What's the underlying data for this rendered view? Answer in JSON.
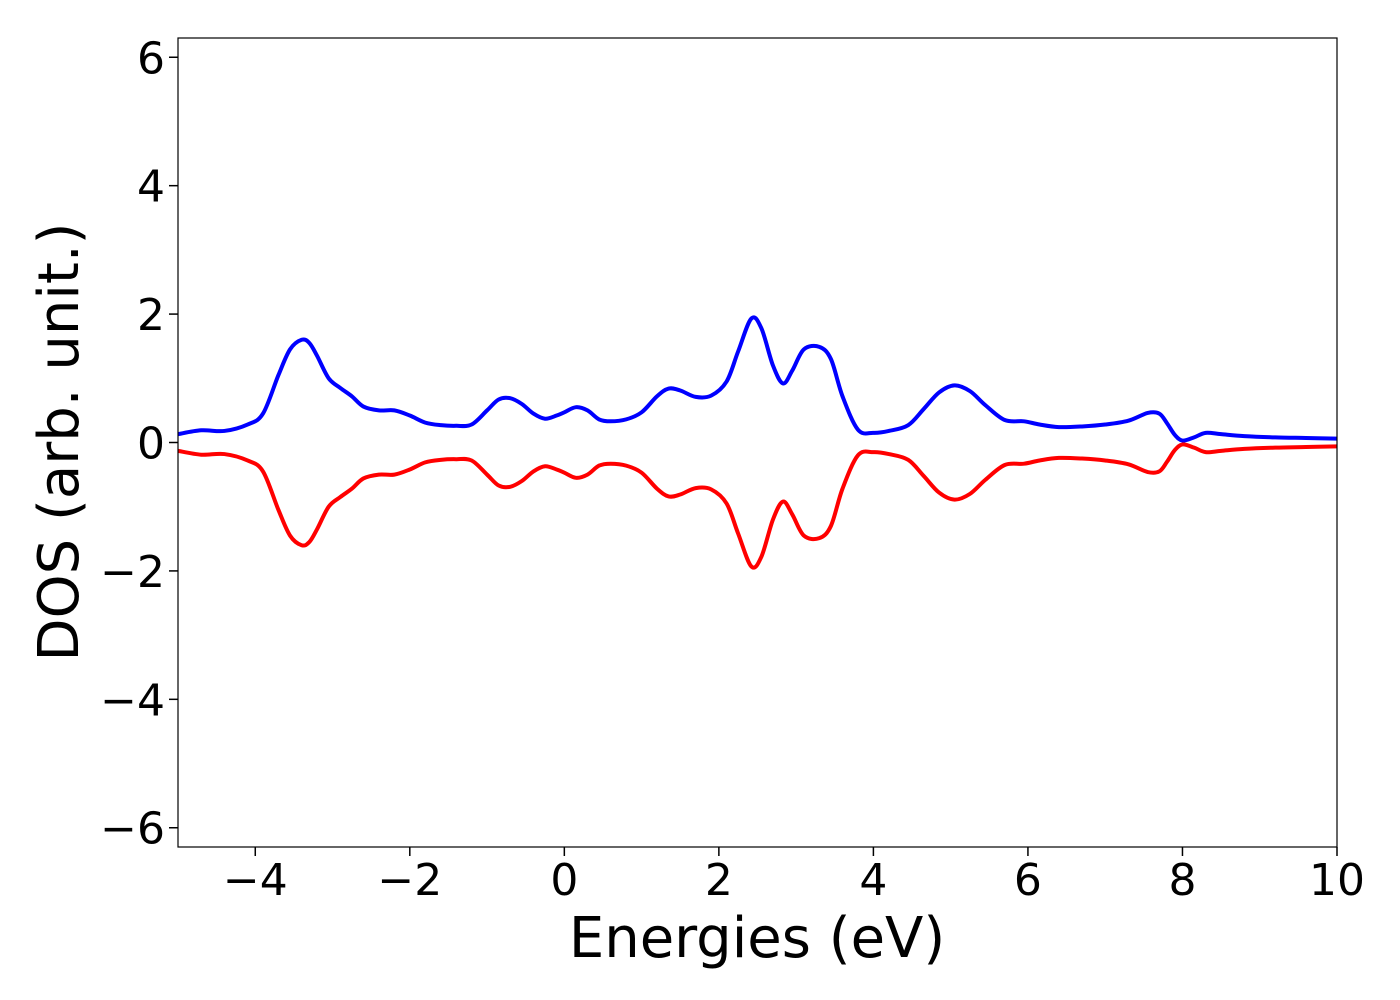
{
  "chart_data": {
    "type": "line",
    "title": "",
    "xlabel": "Energies (eV)",
    "ylabel": "DOS (arb. unit.)",
    "xlim": [
      -5,
      10
    ],
    "ylim": [
      -6.3,
      6.3
    ],
    "xticks": [
      -4,
      -2,
      0,
      2,
      4,
      6,
      8,
      10
    ],
    "xtick_labels": [
      "−4",
      "−2",
      "0",
      "2",
      "4",
      "6",
      "8",
      "10"
    ],
    "yticks": [
      6,
      4,
      2,
      0,
      -2,
      -4,
      -6
    ],
    "ytick_labels": [
      "6",
      "4",
      "2",
      "0",
      "−2",
      "−4",
      "−6"
    ],
    "grid": false,
    "legend": "none",
    "series": [
      {
        "color": "#0000ff",
        "x": [
          -5.0,
          -4.7,
          -4.4,
          -4.1,
          -3.9,
          -3.7,
          -3.55,
          -3.4,
          -3.3,
          -3.2,
          -3.05,
          -2.9,
          -2.75,
          -2.6,
          -2.4,
          -2.2,
          -2.0,
          -1.8,
          -1.6,
          -1.4,
          -1.2,
          -1.0,
          -0.85,
          -0.7,
          -0.55,
          -0.4,
          -0.25,
          -0.1,
          0.0,
          0.15,
          0.3,
          0.45,
          0.6,
          0.8,
          1.0,
          1.2,
          1.35,
          1.5,
          1.7,
          1.9,
          2.1,
          2.25,
          2.42,
          2.55,
          2.7,
          2.83,
          2.95,
          3.1,
          3.3,
          3.45,
          3.6,
          3.8,
          4.0,
          4.2,
          4.45,
          4.65,
          4.85,
          5.05,
          5.25,
          5.45,
          5.7,
          5.95,
          6.15,
          6.4,
          6.7,
          7.0,
          7.3,
          7.55,
          7.7,
          7.8,
          7.9,
          8.0,
          8.15,
          8.3,
          8.5,
          8.8,
          9.2,
          9.6,
          10.0
        ],
        "y": [
          0.13,
          0.19,
          0.18,
          0.28,
          0.45,
          1.05,
          1.45,
          1.6,
          1.55,
          1.35,
          1.0,
          0.85,
          0.72,
          0.56,
          0.5,
          0.5,
          0.42,
          0.31,
          0.27,
          0.26,
          0.28,
          0.5,
          0.67,
          0.69,
          0.6,
          0.45,
          0.37,
          0.42,
          0.47,
          0.55,
          0.5,
          0.36,
          0.33,
          0.36,
          0.47,
          0.72,
          0.84,
          0.81,
          0.71,
          0.73,
          0.95,
          1.42,
          1.93,
          1.78,
          1.2,
          0.92,
          1.12,
          1.45,
          1.49,
          1.3,
          0.72,
          0.2,
          0.15,
          0.18,
          0.27,
          0.52,
          0.78,
          0.89,
          0.8,
          0.58,
          0.35,
          0.33,
          0.28,
          0.24,
          0.25,
          0.28,
          0.34,
          0.46,
          0.45,
          0.3,
          0.12,
          0.03,
          0.08,
          0.15,
          0.13,
          0.1,
          0.08,
          0.07,
          0.06
        ]
      },
      {
        "color": "#ff0000",
        "x": [
          -5.0,
          -4.7,
          -4.4,
          -4.1,
          -3.9,
          -3.7,
          -3.55,
          -3.4,
          -3.3,
          -3.2,
          -3.05,
          -2.9,
          -2.75,
          -2.6,
          -2.4,
          -2.2,
          -2.0,
          -1.8,
          -1.6,
          -1.4,
          -1.2,
          -1.0,
          -0.85,
          -0.7,
          -0.55,
          -0.4,
          -0.25,
          -0.1,
          0.0,
          0.15,
          0.3,
          0.45,
          0.6,
          0.8,
          1.0,
          1.2,
          1.35,
          1.5,
          1.7,
          1.9,
          2.1,
          2.25,
          2.42,
          2.55,
          2.7,
          2.83,
          2.95,
          3.1,
          3.3,
          3.45,
          3.6,
          3.8,
          4.0,
          4.2,
          4.45,
          4.65,
          4.85,
          5.05,
          5.25,
          5.45,
          5.7,
          5.95,
          6.15,
          6.4,
          6.7,
          7.0,
          7.3,
          7.55,
          7.7,
          7.8,
          7.9,
          8.0,
          8.15,
          8.3,
          8.5,
          8.8,
          9.2,
          9.6,
          10.0
        ],
        "y": [
          -0.13,
          -0.19,
          -0.18,
          -0.28,
          -0.45,
          -1.05,
          -1.45,
          -1.6,
          -1.55,
          -1.35,
          -1.0,
          -0.85,
          -0.72,
          -0.56,
          -0.5,
          -0.5,
          -0.42,
          -0.31,
          -0.27,
          -0.26,
          -0.28,
          -0.5,
          -0.67,
          -0.69,
          -0.6,
          -0.45,
          -0.37,
          -0.42,
          -0.47,
          -0.55,
          -0.5,
          -0.36,
          -0.33,
          -0.36,
          -0.47,
          -0.72,
          -0.84,
          -0.81,
          -0.71,
          -0.73,
          -0.95,
          -1.42,
          -1.93,
          -1.78,
          -1.2,
          -0.92,
          -1.12,
          -1.45,
          -1.49,
          -1.3,
          -0.72,
          -0.2,
          -0.15,
          -0.18,
          -0.27,
          -0.52,
          -0.78,
          -0.89,
          -0.8,
          -0.58,
          -0.35,
          -0.33,
          -0.28,
          -0.24,
          -0.25,
          -0.28,
          -0.34,
          -0.46,
          -0.45,
          -0.3,
          -0.12,
          -0.03,
          -0.08,
          -0.15,
          -0.13,
          -0.1,
          -0.08,
          -0.07,
          -0.06
        ]
      }
    ]
  }
}
